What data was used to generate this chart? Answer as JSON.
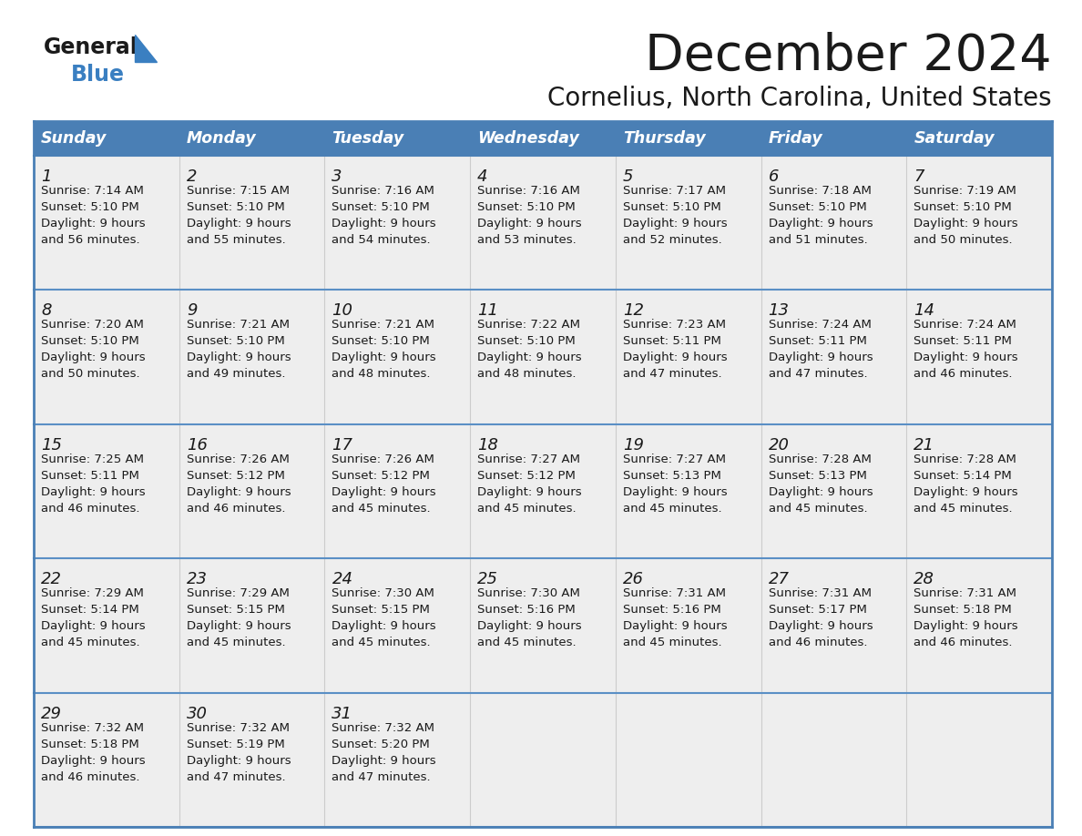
{
  "title": "December 2024",
  "subtitle": "Cornelius, North Carolina, United States",
  "header_color": "#4a7fb5",
  "header_text_color": "#ffffff",
  "cell_bg_color": "#efefef",
  "border_color": "#4a7fb5",
  "row_line_color": "#5a8fc5",
  "days_of_week": [
    "Sunday",
    "Monday",
    "Tuesday",
    "Wednesday",
    "Thursday",
    "Friday",
    "Saturday"
  ],
  "calendar_data": [
    [
      {
        "day": 1,
        "sunrise": "7:14 AM",
        "sunset": "5:10 PM",
        "daylight": "9 hours",
        "daylight2": "and 56 minutes."
      },
      {
        "day": 2,
        "sunrise": "7:15 AM",
        "sunset": "5:10 PM",
        "daylight": "9 hours",
        "daylight2": "and 55 minutes."
      },
      {
        "day": 3,
        "sunrise": "7:16 AM",
        "sunset": "5:10 PM",
        "daylight": "9 hours",
        "daylight2": "and 54 minutes."
      },
      {
        "day": 4,
        "sunrise": "7:16 AM",
        "sunset": "5:10 PM",
        "daylight": "9 hours",
        "daylight2": "and 53 minutes."
      },
      {
        "day": 5,
        "sunrise": "7:17 AM",
        "sunset": "5:10 PM",
        "daylight": "9 hours",
        "daylight2": "and 52 minutes."
      },
      {
        "day": 6,
        "sunrise": "7:18 AM",
        "sunset": "5:10 PM",
        "daylight": "9 hours",
        "daylight2": "and 51 minutes."
      },
      {
        "day": 7,
        "sunrise": "7:19 AM",
        "sunset": "5:10 PM",
        "daylight": "9 hours",
        "daylight2": "and 50 minutes."
      }
    ],
    [
      {
        "day": 8,
        "sunrise": "7:20 AM",
        "sunset": "5:10 PM",
        "daylight": "9 hours",
        "daylight2": "and 50 minutes."
      },
      {
        "day": 9,
        "sunrise": "7:21 AM",
        "sunset": "5:10 PM",
        "daylight": "9 hours",
        "daylight2": "and 49 minutes."
      },
      {
        "day": 10,
        "sunrise": "7:21 AM",
        "sunset": "5:10 PM",
        "daylight": "9 hours",
        "daylight2": "and 48 minutes."
      },
      {
        "day": 11,
        "sunrise": "7:22 AM",
        "sunset": "5:10 PM",
        "daylight": "9 hours",
        "daylight2": "and 48 minutes."
      },
      {
        "day": 12,
        "sunrise": "7:23 AM",
        "sunset": "5:11 PM",
        "daylight": "9 hours",
        "daylight2": "and 47 minutes."
      },
      {
        "day": 13,
        "sunrise": "7:24 AM",
        "sunset": "5:11 PM",
        "daylight": "9 hours",
        "daylight2": "and 47 minutes."
      },
      {
        "day": 14,
        "sunrise": "7:24 AM",
        "sunset": "5:11 PM",
        "daylight": "9 hours",
        "daylight2": "and 46 minutes."
      }
    ],
    [
      {
        "day": 15,
        "sunrise": "7:25 AM",
        "sunset": "5:11 PM",
        "daylight": "9 hours",
        "daylight2": "and 46 minutes."
      },
      {
        "day": 16,
        "sunrise": "7:26 AM",
        "sunset": "5:12 PM",
        "daylight": "9 hours",
        "daylight2": "and 46 minutes."
      },
      {
        "day": 17,
        "sunrise": "7:26 AM",
        "sunset": "5:12 PM",
        "daylight": "9 hours",
        "daylight2": "and 45 minutes."
      },
      {
        "day": 18,
        "sunrise": "7:27 AM",
        "sunset": "5:12 PM",
        "daylight": "9 hours",
        "daylight2": "and 45 minutes."
      },
      {
        "day": 19,
        "sunrise": "7:27 AM",
        "sunset": "5:13 PM",
        "daylight": "9 hours",
        "daylight2": "and 45 minutes."
      },
      {
        "day": 20,
        "sunrise": "7:28 AM",
        "sunset": "5:13 PM",
        "daylight": "9 hours",
        "daylight2": "and 45 minutes."
      },
      {
        "day": 21,
        "sunrise": "7:28 AM",
        "sunset": "5:14 PM",
        "daylight": "9 hours",
        "daylight2": "and 45 minutes."
      }
    ],
    [
      {
        "day": 22,
        "sunrise": "7:29 AM",
        "sunset": "5:14 PM",
        "daylight": "9 hours",
        "daylight2": "and 45 minutes."
      },
      {
        "day": 23,
        "sunrise": "7:29 AM",
        "sunset": "5:15 PM",
        "daylight": "9 hours",
        "daylight2": "and 45 minutes."
      },
      {
        "day": 24,
        "sunrise": "7:30 AM",
        "sunset": "5:15 PM",
        "daylight": "9 hours",
        "daylight2": "and 45 minutes."
      },
      {
        "day": 25,
        "sunrise": "7:30 AM",
        "sunset": "5:16 PM",
        "daylight": "9 hours",
        "daylight2": "and 45 minutes."
      },
      {
        "day": 26,
        "sunrise": "7:31 AM",
        "sunset": "5:16 PM",
        "daylight": "9 hours",
        "daylight2": "and 45 minutes."
      },
      {
        "day": 27,
        "sunrise": "7:31 AM",
        "sunset": "5:17 PM",
        "daylight": "9 hours",
        "daylight2": "and 46 minutes."
      },
      {
        "day": 28,
        "sunrise": "7:31 AM",
        "sunset": "5:18 PM",
        "daylight": "9 hours",
        "daylight2": "and 46 minutes."
      }
    ],
    [
      {
        "day": 29,
        "sunrise": "7:32 AM",
        "sunset": "5:18 PM",
        "daylight": "9 hours",
        "daylight2": "and 46 minutes."
      },
      {
        "day": 30,
        "sunrise": "7:32 AM",
        "sunset": "5:19 PM",
        "daylight": "9 hours",
        "daylight2": "and 47 minutes."
      },
      {
        "day": 31,
        "sunrise": "7:32 AM",
        "sunset": "5:20 PM",
        "daylight": "9 hours",
        "daylight2": "and 47 minutes."
      },
      null,
      null,
      null,
      null
    ]
  ],
  "logo_color_general": "#1a1a1a",
  "logo_color_blue": "#3a7fc1",
  "logo_triangle_color": "#3a7fc1"
}
